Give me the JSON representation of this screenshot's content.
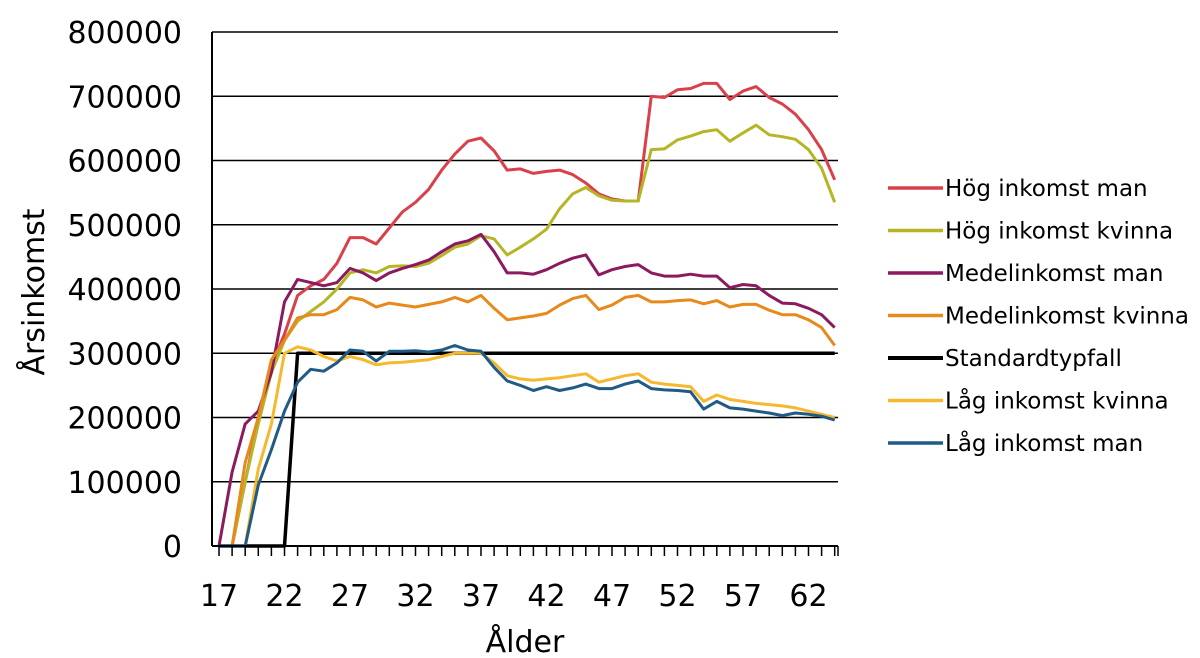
{
  "chart_data": {
    "type": "line",
    "xlabel": "Ålder",
    "ylabel": "Årsinkomst",
    "xlim": [
      17,
      64
    ],
    "ylim": [
      0,
      800000
    ],
    "x": [
      17,
      18,
      19,
      20,
      21,
      22,
      23,
      24,
      25,
      26,
      27,
      28,
      29,
      30,
      31,
      32,
      33,
      34,
      35,
      36,
      37,
      38,
      39,
      40,
      41,
      42,
      43,
      44,
      45,
      46,
      47,
      48,
      49,
      50,
      51,
      52,
      53,
      54,
      55,
      56,
      57,
      58,
      59,
      60,
      61,
      62,
      63,
      64
    ],
    "x_tick_labels": [
      "17",
      "22",
      "27",
      "32",
      "37",
      "42",
      "47",
      "52",
      "57",
      "62"
    ],
    "y_tick_labels": [
      "0",
      "100000",
      "200000",
      "300000",
      "400000",
      "500000",
      "600000",
      "700000",
      "800000"
    ],
    "grid": "horizontal",
    "legend_position": "right",
    "series": [
      {
        "name": "Hög inkomst man",
        "color": "#d9404a",
        "values": [
          0,
          0,
          100000,
          200000,
          280000,
          330000,
          390000,
          405000,
          415000,
          440000,
          480000,
          480000,
          470000,
          495000,
          520000,
          535000,
          555000,
          585000,
          610000,
          630000,
          635000,
          615000,
          585000,
          587000,
          580000,
          583000,
          585000,
          578000,
          565000,
          548000,
          540000,
          537000,
          537000,
          700000,
          698000,
          710000,
          712000,
          720000,
          720000,
          695000,
          708000,
          715000,
          698000,
          688000,
          672000,
          648000,
          617000,
          570000
        ]
      },
      {
        "name": "Hög inkomst kvinna",
        "color": "#b5b526",
        "values": [
          0,
          0,
          100000,
          190000,
          270000,
          320000,
          350000,
          365000,
          380000,
          400000,
          425000,
          430000,
          425000,
          435000,
          436000,
          435000,
          440000,
          452000,
          465000,
          470000,
          483000,
          478000,
          453000,
          465000,
          478000,
          493000,
          525000,
          548000,
          558000,
          545000,
          538000,
          537000,
          537000,
          617000,
          618000,
          632000,
          638000,
          645000,
          648000,
          630000,
          643000,
          655000,
          640000,
          637000,
          633000,
          617000,
          588000,
          535000
        ]
      },
      {
        "name": "Medelinkomst man",
        "color": "#8b1a5e",
        "values": [
          0,
          115000,
          190000,
          210000,
          270000,
          380000,
          415000,
          410000,
          405000,
          410000,
          432000,
          425000,
          413000,
          425000,
          432000,
          438000,
          445000,
          458000,
          470000,
          475000,
          485000,
          458000,
          425000,
          425000,
          423000,
          430000,
          440000,
          448000,
          453000,
          422000,
          430000,
          435000,
          438000,
          425000,
          420000,
          420000,
          423000,
          420000,
          420000,
          402000,
          407000,
          405000,
          390000,
          378000,
          377000,
          370000,
          360000,
          340000
        ]
      },
      {
        "name": "Medelinkomst kvinna",
        "color": "#e8891c",
        "values": [
          0,
          0,
          130000,
          200000,
          290000,
          320000,
          355000,
          360000,
          360000,
          368000,
          387000,
          383000,
          372000,
          378000,
          375000,
          372000,
          376000,
          380000,
          387000,
          380000,
          390000,
          370000,
          352000,
          355000,
          358000,
          362000,
          375000,
          385000,
          390000,
          368000,
          375000,
          387000,
          390000,
          380000,
          380000,
          382000,
          383000,
          377000,
          382000,
          372000,
          376000,
          376000,
          367000,
          360000,
          360000,
          352000,
          340000,
          312000
        ]
      },
      {
        "name": "Standardtypfall",
        "color": "#000000",
        "values": [
          0,
          0,
          0,
          0,
          0,
          0,
          300000,
          300000,
          300000,
          300000,
          300000,
          300000,
          300000,
          300000,
          300000,
          300000,
          300000,
          300000,
          300000,
          300000,
          300000,
          300000,
          300000,
          300000,
          300000,
          300000,
          300000,
          300000,
          300000,
          300000,
          300000,
          300000,
          300000,
          300000,
          300000,
          300000,
          300000,
          300000,
          300000,
          300000,
          300000,
          300000,
          300000,
          300000,
          300000,
          300000,
          300000,
          300000
        ]
      },
      {
        "name": "Låg inkomst kvinna",
        "color": "#f5b82e",
        "values": [
          0,
          0,
          0,
          120000,
          190000,
          300000,
          310000,
          305000,
          295000,
          288000,
          295000,
          290000,
          282000,
          285000,
          286000,
          288000,
          290000,
          295000,
          300000,
          300000,
          300000,
          285000,
          265000,
          260000,
          258000,
          260000,
          262000,
          265000,
          268000,
          255000,
          260000,
          265000,
          268000,
          255000,
          252000,
          250000,
          248000,
          225000,
          235000,
          228000,
          225000,
          222000,
          220000,
          218000,
          215000,
          210000,
          205000,
          200000
        ]
      },
      {
        "name": "Låg inkomst man",
        "color": "#1f5b85",
        "values": [
          0,
          0,
          0,
          95000,
          150000,
          210000,
          255000,
          275000,
          272000,
          285000,
          305000,
          303000,
          288000,
          303000,
          303000,
          304000,
          302000,
          305000,
          312000,
          305000,
          303000,
          278000,
          257000,
          250000,
          242000,
          248000,
          242000,
          246000,
          252000,
          245000,
          245000,
          252000,
          257000,
          245000,
          243000,
          242000,
          240000,
          213000,
          225000,
          215000,
          213000,
          210000,
          207000,
          203000,
          207000,
          205000,
          202000,
          196000
        ]
      }
    ]
  }
}
